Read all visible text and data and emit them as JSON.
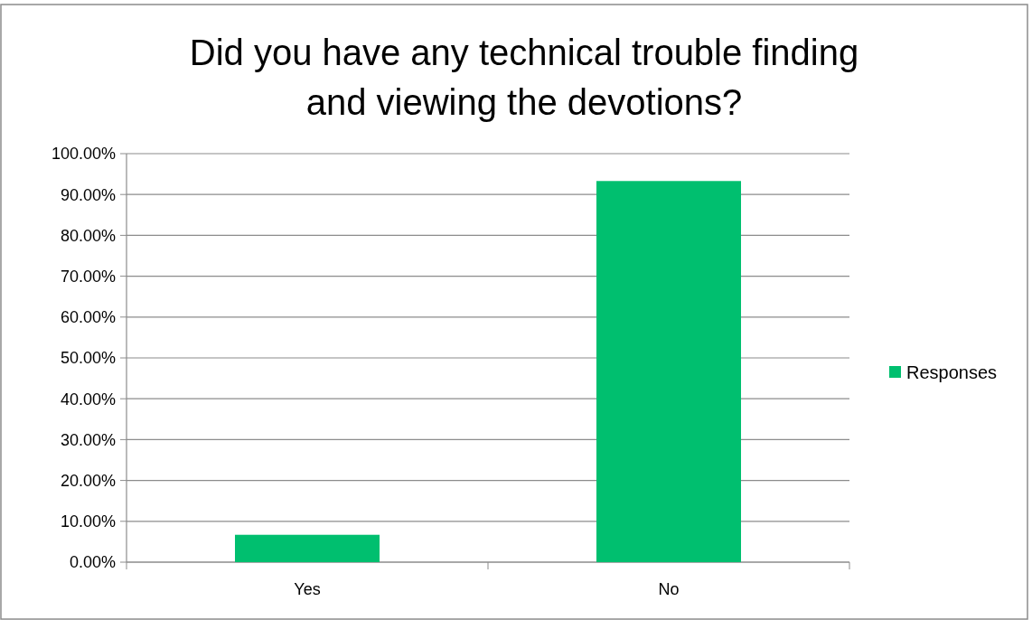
{
  "chart_data": {
    "type": "bar",
    "title": "Did you have any technical trouble finding and viewing the devotions?",
    "categories": [
      "Yes",
      "No"
    ],
    "series": [
      {
        "name": "Responses",
        "color": "#00bf6f",
        "values": [
          6.7,
          93.3
        ]
      }
    ],
    "ylim": [
      0,
      100
    ],
    "yticks": [
      {
        "value": 0,
        "label": "0.00%"
      },
      {
        "value": 10,
        "label": "10.00%"
      },
      {
        "value": 20,
        "label": "20.00%"
      },
      {
        "value": 30,
        "label": "30.00%"
      },
      {
        "value": 40,
        "label": "40.00%"
      },
      {
        "value": 50,
        "label": "50.00%"
      },
      {
        "value": 60,
        "label": "60.00%"
      },
      {
        "value": 70,
        "label": "70.00%"
      },
      {
        "value": 80,
        "label": "80.00%"
      },
      {
        "value": 90,
        "label": "90.00%"
      },
      {
        "value": 100,
        "label": "100.00%"
      }
    ],
    "grid": "y",
    "legend": "right"
  }
}
